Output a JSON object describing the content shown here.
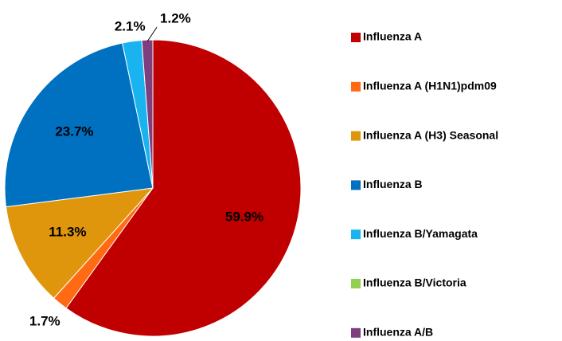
{
  "chart_data": {
    "type": "pie",
    "categories": [
      "Influenza A",
      "Influenza A (H1N1)pdm09",
      "Influenza A (H3) Seasonal",
      "Influenza B",
      "Influenza B/Yamagata",
      "Influenza B/Victoria",
      "Influenza A/B"
    ],
    "values": [
      59.9,
      1.7,
      11.3,
      23.7,
      2.1,
      0,
      1.2
    ],
    "value_labels": [
      "59.9%",
      "1.7%",
      "11.3%",
      "23.7%",
      "2.1%",
      null,
      "1.2%"
    ],
    "colors": [
      "#c00000",
      "#ff6a13",
      "#e0960c",
      "#0070c0",
      "#19b3f0",
      "#92d050",
      "#7f3f7f"
    ],
    "legend": "right"
  }
}
